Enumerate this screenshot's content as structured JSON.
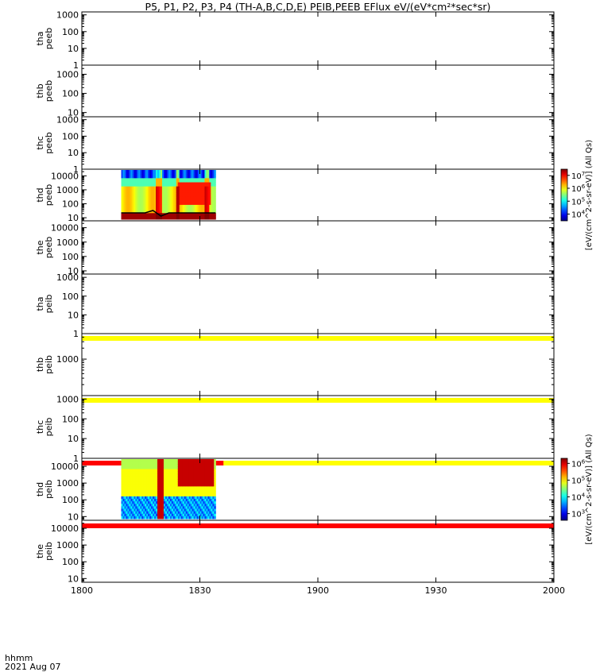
{
  "title": "P5, P1, P2, P3, P4 (TH-A,B,C,D,E) PEIB,PEEB EFlux eV/(eV*cm²*sec*sr)",
  "footer": {
    "line1": "hhmm",
    "line2": "2021 Aug 07"
  },
  "chart_data": {
    "type": "heatmap",
    "x_axis": {
      "ticks": [
        "1800",
        "1830",
        "1900",
        "1930",
        "2000"
      ],
      "range": [
        "18:00",
        "20:00"
      ]
    },
    "panels": [
      {
        "id": "tha-peeb",
        "probe": "tha",
        "product": "peeb",
        "y_ticks": [
          "1",
          "10",
          "100",
          "1000"
        ],
        "y_log_range": [
          1,
          1500
        ],
        "data": "none"
      },
      {
        "id": "thb-peeb",
        "probe": "thb",
        "product": "peeb",
        "y_ticks": [
          "10",
          "100",
          "1000"
        ],
        "y_log_range": [
          6,
          3000
        ],
        "data": "none"
      },
      {
        "id": "thc-peeb",
        "probe": "thc",
        "product": "peeb",
        "y_ticks": [
          "1",
          "10",
          "100",
          "1000"
        ],
        "y_log_range": [
          1,
          1500
        ],
        "data": "none"
      },
      {
        "id": "thd-peeb",
        "probe": "thd",
        "product": "peeb",
        "y_ticks": [
          "10",
          "100",
          "1000",
          "10000"
        ],
        "y_log_range": [
          6,
          30000
        ],
        "data": "spectrogram",
        "time_range": [
          "18:10",
          "18:34"
        ]
      },
      {
        "id": "the-peeb",
        "probe": "the",
        "product": "peeb",
        "y_ticks": [
          "10",
          "100",
          "1000",
          "10000"
        ],
        "y_log_range": [
          6,
          30000
        ],
        "data": "none"
      },
      {
        "id": "tha-peib",
        "probe": "tha",
        "product": "peib",
        "y_ticks": [
          "1",
          "10",
          "100",
          "1000"
        ],
        "y_log_range": [
          1,
          1500
        ],
        "data": "band",
        "band_color": "yellow"
      },
      {
        "id": "thb-peib",
        "probe": "thb",
        "product": "peib",
        "y_ticks": [
          "1000"
        ],
        "y_log_range": [
          100,
          5000
        ],
        "data": "band",
        "band_color": "yellow"
      },
      {
        "id": "thc-peib",
        "probe": "thc",
        "product": "peib",
        "y_ticks": [
          "1",
          "10",
          "100",
          "1000"
        ],
        "y_log_range": [
          1,
          1500
        ],
        "data": "band",
        "band_color": "yellow+red",
        "red_until": "18:36"
      },
      {
        "id": "thd-peib",
        "probe": "thd",
        "product": "peib",
        "y_ticks": [
          "10",
          "100",
          "1000",
          "10000"
        ],
        "y_log_range": [
          6,
          30000
        ],
        "data": "spectrogram",
        "time_range": [
          "18:10",
          "18:34"
        ],
        "band_color": "red"
      },
      {
        "id": "the-peib",
        "probe": "the",
        "product": "peib",
        "y_ticks": [
          "10",
          "100",
          "1000",
          "10000"
        ],
        "y_log_range": [
          6,
          30000
        ],
        "data": "none"
      }
    ],
    "colorbars": [
      {
        "id": "cbar-peeb",
        "label": "[eV/(cm^2-s-sr-eV)] (All Qs)",
        "ticks": [
          {
            "b": "10",
            "e": "4"
          },
          {
            "b": "10",
            "e": "5"
          },
          {
            "b": "10",
            "e": "6"
          },
          {
            "b": "10",
            "e": "7"
          }
        ],
        "log_range": [
          3000,
          30000000
        ]
      },
      {
        "id": "cbar-peib",
        "label": "[eV/(cm^2-s-sr-eV)] (All Qs)",
        "ticks": [
          {
            "b": "10",
            "e": "3"
          },
          {
            "b": "10",
            "e": "4"
          },
          {
            "b": "10",
            "e": "5"
          },
          {
            "b": "10",
            "e": "6"
          }
        ],
        "log_range": [
          400,
          2000000
        ]
      }
    ]
  }
}
